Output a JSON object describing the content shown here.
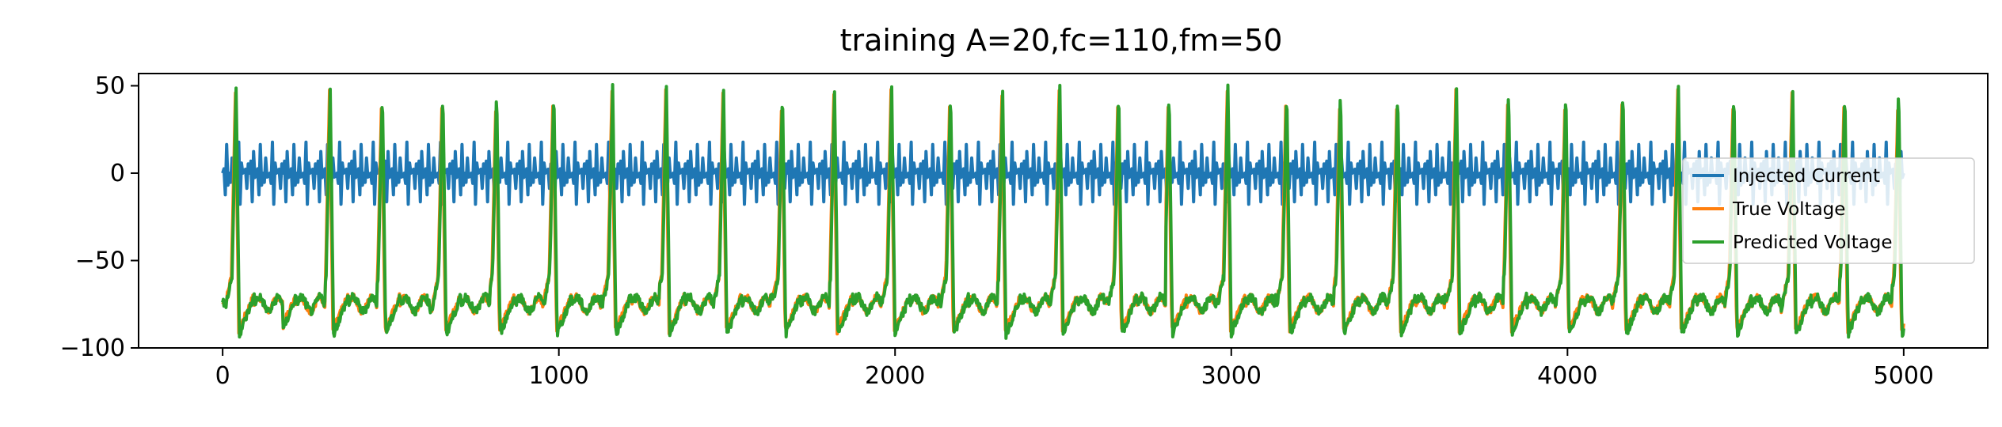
{
  "chart_data": {
    "type": "line",
    "title": "training A=20,fc=110,fm=50",
    "xlabel": "",
    "ylabel": "",
    "xlim": [
      -250,
      5250
    ],
    "ylim": [
      -100,
      57
    ],
    "xticks": [
      0,
      1000,
      2000,
      3000,
      4000,
      5000
    ],
    "xtick_labels": [
      "0",
      "1000",
      "2000",
      "3000",
      "4000",
      "5000"
    ],
    "yticks": [
      -100,
      -50,
      0,
      50
    ],
    "ytick_labels": [
      "−100",
      "−50",
      "0",
      "50"
    ],
    "grid": false,
    "legend_position": "center-right",
    "series": [
      {
        "name": "Injected Current",
        "color": "#1f77b4",
        "kind": "AM signal, amplitude 20, carrier 110, modulation 50",
        "amplitude": 20,
        "fc": 110,
        "fm": 50,
        "x_start": 0,
        "x_end": 5000
      },
      {
        "name": "True Voltage",
        "color": "#ff7f0e",
        "baseline": -75,
        "peak": 46,
        "trough": -90,
        "spike_times": [
          40,
          165,
          320,
          475,
          655,
          815,
          985,
          1160,
          1320,
          1490,
          1665,
          1820,
          1990,
          2165,
          2320,
          2490,
          2665,
          2815,
          2990,
          3165,
          3325,
          3495,
          3670,
          3825,
          3995,
          4165,
          4330,
          4495,
          4670,
          4825,
          4985
        ]
      },
      {
        "name": "Predicted Voltage",
        "color": "#2ca02c",
        "baseline": -75,
        "peak": 49,
        "trough": -92,
        "spike_times": [
          40,
          165,
          320,
          475,
          655,
          815,
          985,
          1160,
          1320,
          1490,
          1665,
          1820,
          1990,
          2165,
          2320,
          2490,
          2665,
          2815,
          2990,
          3165,
          3325,
          3495,
          3670,
          3825,
          3995,
          4165,
          4330,
          4495,
          4670,
          4825,
          4985
        ]
      }
    ]
  }
}
